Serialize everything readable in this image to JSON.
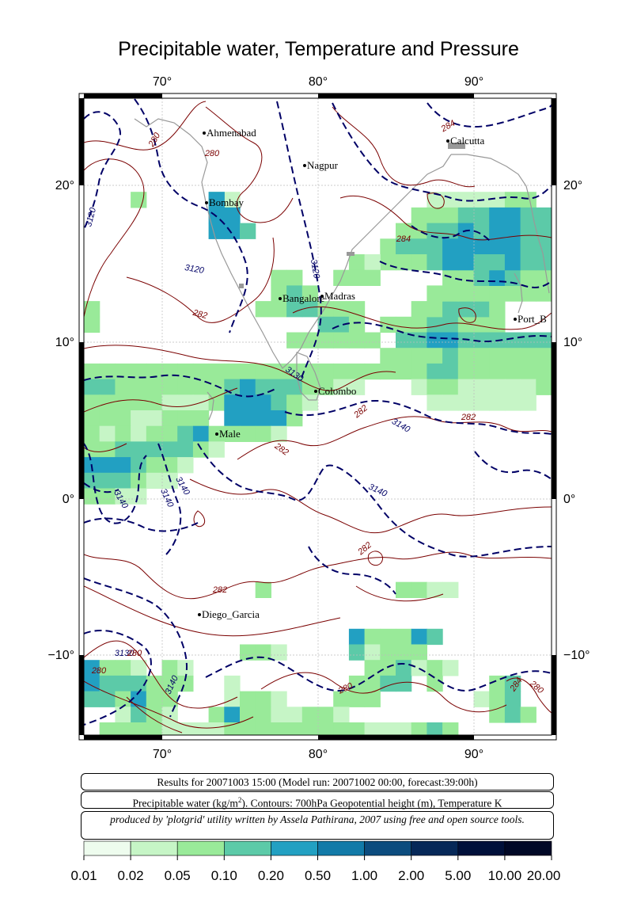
{
  "title": "Precipitable water, Temperature and Pressure",
  "map": {
    "lon_ticks": [
      "70°",
      "80°",
      "90°"
    ],
    "lat_ticks": [
      "20°",
      "10°",
      "0°",
      "−10°"
    ],
    "cities": [
      {
        "name": "Ahmenabad"
      },
      {
        "name": "Calcutta"
      },
      {
        "name": "Nagpur"
      },
      {
        "name": "Bombay"
      },
      {
        "name": "Madras"
      },
      {
        "name": "Bangalore"
      },
      {
        "name": "Port_B"
      },
      {
        "name": "Colombo"
      },
      {
        "name": "Male"
      },
      {
        "name": "Diego_Garcia"
      }
    ],
    "contour_labels": [
      "280",
      "284",
      "280",
      "3120",
      "3120",
      "3120",
      "284",
      "282",
      "3130",
      "282",
      "3140",
      "282",
      "282",
      "3140",
      "3140",
      "3140",
      "3140",
      "282",
      "282",
      "3130",
      "280",
      "3140",
      "280",
      "284",
      "280",
      "280"
    ],
    "colors": {
      "temperature_contour": "#7a0000",
      "height_contour": "#000066",
      "coast": "#999999"
    }
  },
  "info": {
    "line1": "Results for 20071003 15:00 (Model run: 20071002 00:00, forecast:39:00h)",
    "line2_prefix": "Precipitable water (kg/m",
    "line2_sup": "2",
    "line2_suffix": ").  Contours: 700hPa Geopotential height (m), Temperature K",
    "line3": "produced by 'plotgrid' utility written by Assela Pathirana, 2007 using free and open source tools."
  },
  "colorbar": {
    "labels": [
      "0.01",
      "0.02",
      "0.05",
      "0.10",
      "0.20",
      "0.50",
      "1.00",
      "2.00",
      "5.00",
      "10.00",
      "20.00"
    ],
    "colors": [
      "#eefcee",
      "#c6f5c6",
      "#99ea99",
      "#5ccaa8",
      "#22a0c2",
      "#127aa8",
      "#0c4c7e",
      "#062858",
      "#00103a",
      "#000826",
      "#000010"
    ]
  }
}
